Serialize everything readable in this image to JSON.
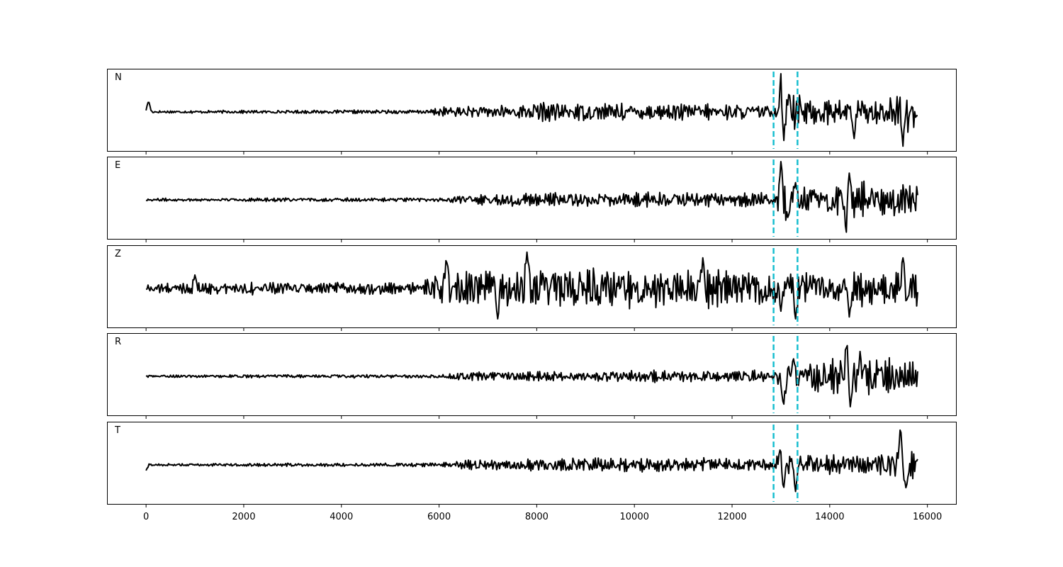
{
  "chart_data": {
    "type": "line",
    "title": "",
    "xlabel": "",
    "ylabel": "",
    "xlim": [
      -800,
      16600
    ],
    "xticks": [
      0,
      2000,
      4000,
      6000,
      8000,
      10000,
      12000,
      14000,
      16000
    ],
    "xtick_labels": [
      "0",
      "2000",
      "4000",
      "6000",
      "8000",
      "10000",
      "12000",
      "14000",
      "16000"
    ],
    "x_range": [
      0,
      15800
    ],
    "pick_lines": [
      12850,
      13340
    ],
    "pick_color": "#17becf",
    "trace_color": "#000000",
    "grid": false,
    "series": [
      {
        "name": "N",
        "envelope": [
          [
            0,
            0.05
          ],
          [
            5800,
            0.08
          ],
          [
            6000,
            0.2
          ],
          [
            7600,
            0.3
          ],
          [
            8000,
            0.4
          ],
          [
            12700,
            0.3
          ],
          [
            12900,
            0.25
          ],
          [
            13000,
            1.0
          ],
          [
            13340,
            0.7
          ],
          [
            13800,
            0.55
          ],
          [
            14600,
            0.55
          ],
          [
            15000,
            0.45
          ],
          [
            15500,
            0.95
          ],
          [
            15800,
            0.6
          ]
        ],
        "spikes": [
          [
            50,
            0.3
          ],
          [
            13000,
            1.0
          ],
          [
            13060,
            -0.75
          ],
          [
            13170,
            0.55
          ],
          [
            14500,
            -0.7
          ],
          [
            15500,
            -0.9
          ],
          [
            15780,
            -0.1
          ]
        ]
      },
      {
        "name": "E",
        "envelope": [
          [
            0,
            0.06
          ],
          [
            6000,
            0.08
          ],
          [
            6600,
            0.2
          ],
          [
            7800,
            0.28
          ],
          [
            12800,
            0.3
          ],
          [
            12900,
            0.25
          ],
          [
            13000,
            1.0
          ],
          [
            13340,
            0.55
          ],
          [
            14300,
            0.7
          ],
          [
            14400,
            0.8
          ],
          [
            15800,
            0.6
          ]
        ],
        "spikes": [
          [
            13000,
            1.0
          ],
          [
            13150,
            -0.5
          ],
          [
            13300,
            0.45
          ],
          [
            14340,
            -0.85
          ],
          [
            14400,
            0.7
          ]
        ]
      },
      {
        "name": "Z",
        "envelope": [
          [
            0,
            0.2
          ],
          [
            1000,
            0.25
          ],
          [
            5600,
            0.25
          ],
          [
            6000,
            0.7
          ],
          [
            7500,
            0.8
          ],
          [
            7900,
            0.9
          ],
          [
            12700,
            0.7
          ],
          [
            13340,
            0.7
          ],
          [
            15800,
            0.7
          ]
        ],
        "spikes": [
          [
            1000,
            0.35
          ],
          [
            6150,
            0.8
          ],
          [
            7200,
            -0.8
          ],
          [
            7800,
            0.95
          ],
          [
            11400,
            0.8
          ],
          [
            13000,
            -0.6
          ],
          [
            13300,
            -0.8
          ],
          [
            14400,
            -0.75
          ],
          [
            15500,
            0.8
          ]
        ]
      },
      {
        "name": "R",
        "envelope": [
          [
            0,
            0.05
          ],
          [
            6000,
            0.08
          ],
          [
            6600,
            0.18
          ],
          [
            12700,
            0.25
          ],
          [
            12900,
            0.3
          ],
          [
            13000,
            0.8
          ],
          [
            13340,
            0.55
          ],
          [
            14300,
            0.8
          ],
          [
            14400,
            0.9
          ],
          [
            15800,
            0.55
          ]
        ],
        "spikes": [
          [
            13050,
            -0.85
          ],
          [
            13250,
            0.5
          ],
          [
            14350,
            0.9
          ],
          [
            14420,
            -0.8
          ],
          [
            14620,
            0.65
          ]
        ]
      },
      {
        "name": "T",
        "envelope": [
          [
            0,
            0.05
          ],
          [
            6000,
            0.08
          ],
          [
            6600,
            0.2
          ],
          [
            9000,
            0.3
          ],
          [
            12700,
            0.25
          ],
          [
            12900,
            0.35
          ],
          [
            13000,
            0.55
          ],
          [
            13340,
            0.45
          ],
          [
            14000,
            0.4
          ],
          [
            15300,
            0.45
          ],
          [
            15500,
            1.0
          ],
          [
            15800,
            0.4
          ]
        ],
        "spikes": [
          [
            0,
            -0.15
          ],
          [
            13000,
            0.55
          ],
          [
            13050,
            -0.7
          ],
          [
            13300,
            -0.7
          ],
          [
            15450,
            1.0
          ],
          [
            15560,
            -0.6
          ],
          [
            15780,
            0.1
          ]
        ]
      }
    ]
  }
}
